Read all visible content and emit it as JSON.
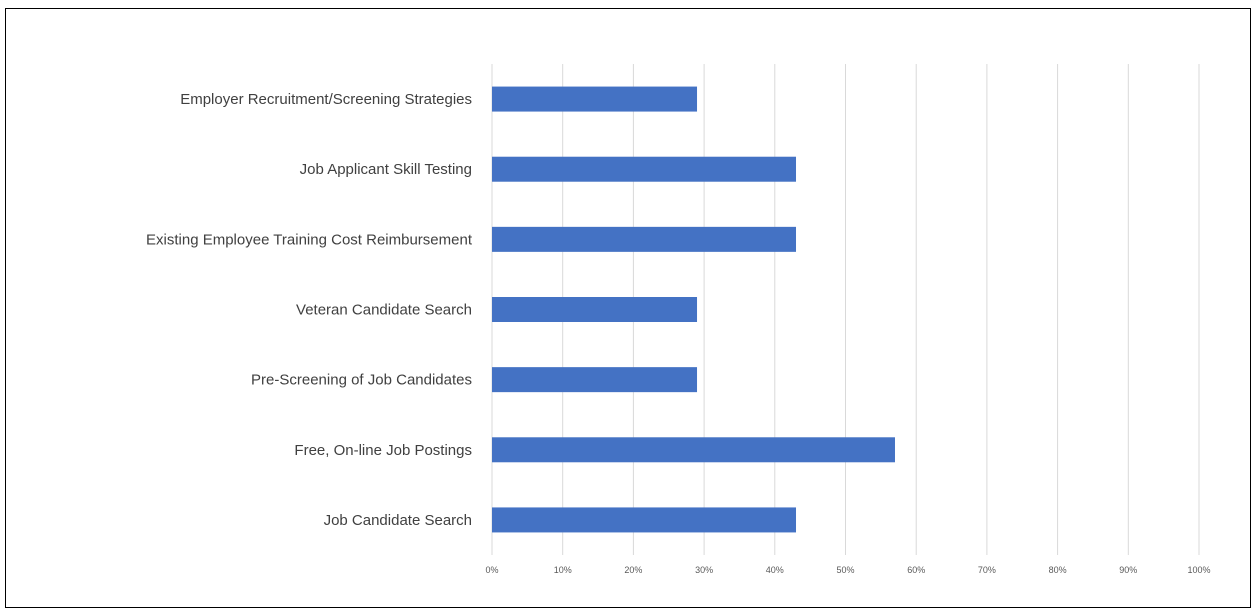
{
  "chart_data": {
    "type": "bar",
    "orientation": "horizontal",
    "title": "",
    "xlabel": "",
    "ylabel": "",
    "categories": [
      "Employer Recruitment/Screening Strategies",
      "Job Applicant Skill Testing",
      "Existing Employee Training Cost Reimbursement",
      "Veteran Candidate Search",
      "Pre-Screening of Job Candidates",
      "Free, On-line Job Postings",
      "Job Candidate Search"
    ],
    "values": [
      29,
      43,
      43,
      29,
      29,
      57,
      43
    ],
    "value_unit": "percent",
    "xlim": [
      0,
      100
    ],
    "x_ticks": [
      "0%",
      "10%",
      "20%",
      "30%",
      "40%",
      "50%",
      "60%",
      "70%",
      "80%",
      "90%",
      "100%"
    ],
    "grid": "vertical",
    "legend": "none",
    "bar_color": "#4472C4",
    "grid_color": "#D9D9D9"
  }
}
